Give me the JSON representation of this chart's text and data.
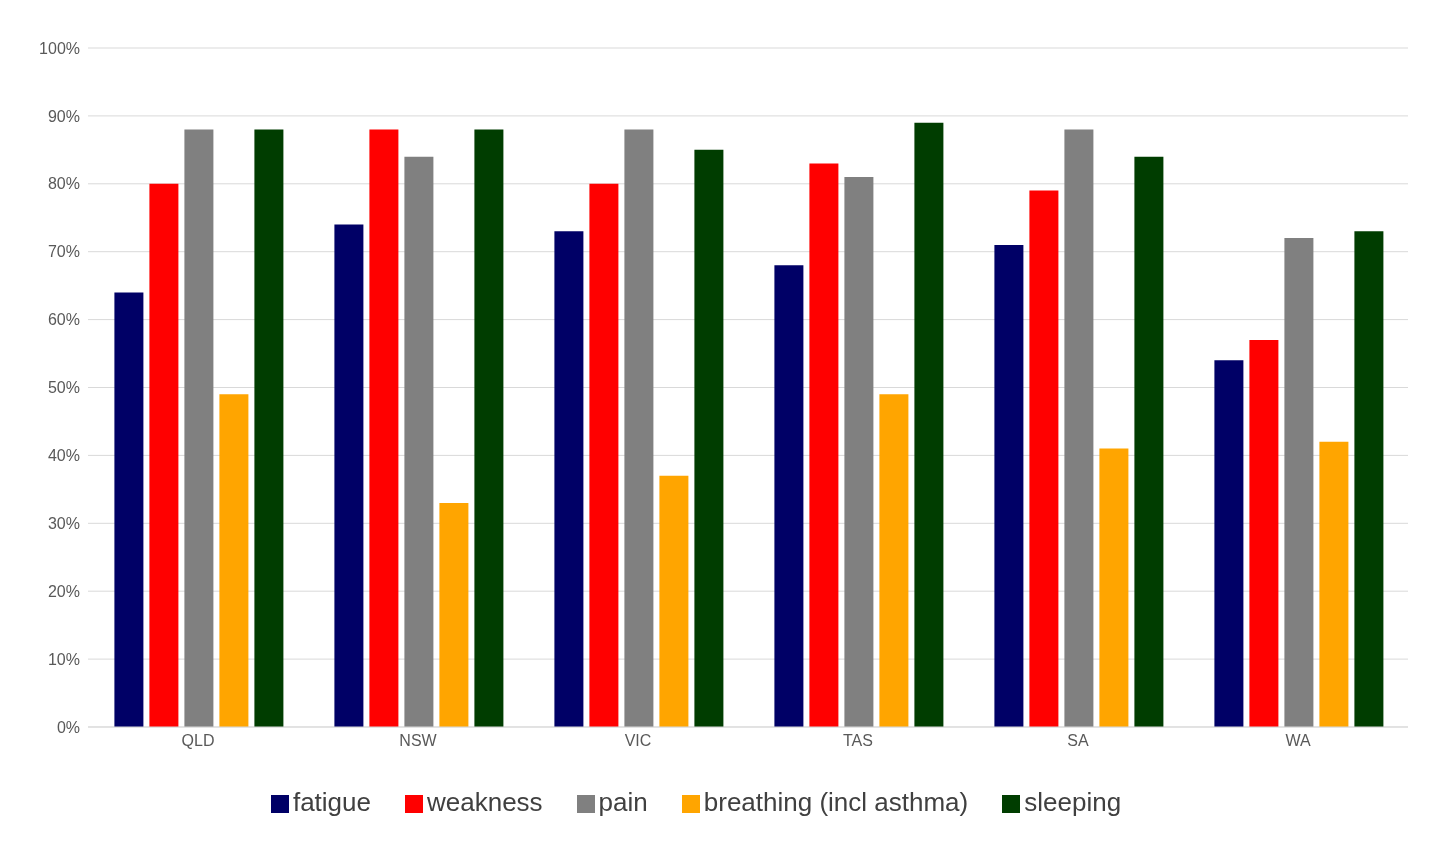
{
  "chart_data": {
    "type": "bar",
    "categories": [
      "QLD",
      "NSW",
      "VIC",
      "TAS",
      "SA",
      "WA"
    ],
    "series": [
      {
        "name": "fatigue",
        "color": "#000066",
        "values": [
          64,
          74,
          73,
          68,
          71,
          54
        ]
      },
      {
        "name": "weakness",
        "color": "#ff0000",
        "values": [
          80,
          88,
          80,
          83,
          79,
          57
        ]
      },
      {
        "name": "pain",
        "color": "#808080",
        "values": [
          88,
          84,
          88,
          81,
          88,
          72
        ]
      },
      {
        "name": "breathing (incl asthma)",
        "color": "#ffa500",
        "values": [
          49,
          33,
          37,
          49,
          41,
          42
        ]
      },
      {
        "name": "sleeping",
        "color": "#003d00",
        "values": [
          88,
          88,
          85,
          89,
          84,
          73
        ]
      }
    ],
    "ylim": [
      0,
      100
    ],
    "yticks": [
      {
        "value": 0,
        "label": "0%"
      },
      {
        "value": 10,
        "label": "10%"
      },
      {
        "value": 20,
        "label": "20%"
      },
      {
        "value": 30,
        "label": "30%"
      },
      {
        "value": 40,
        "label": "40%"
      },
      {
        "value": 50,
        "label": "50%"
      },
      {
        "value": 60,
        "label": "60%"
      },
      {
        "value": 70,
        "label": "70%"
      },
      {
        "value": 80,
        "label": "80%"
      },
      {
        "value": 90,
        "label": "90%"
      },
      {
        "value": 100,
        "label": "100%"
      }
    ],
    "grid": "y",
    "legend": "bottom"
  }
}
